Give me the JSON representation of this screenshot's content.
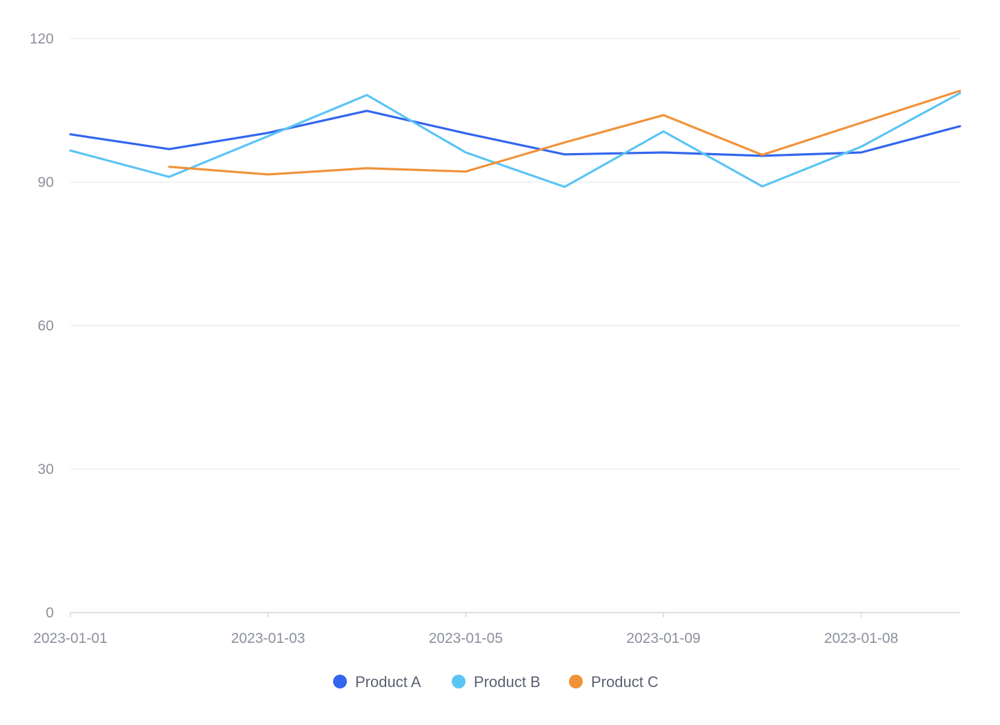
{
  "chart_data": {
    "type": "line",
    "title": "",
    "xlabel": "",
    "ylabel": "",
    "x_categories": [
      "2023-01-01",
      "",
      "2023-01-03",
      "",
      "2023-01-05",
      "",
      "2023-01-09",
      "",
      "2023-01-08",
      ""
    ],
    "x_tick_labels": [
      "2023-01-01",
      "2023-01-03",
      "2023-01-05",
      "2023-01-09",
      "2023-01-08"
    ],
    "x_tick_label_indices": [
      0,
      2,
      4,
      6,
      8
    ],
    "ylim": [
      0,
      120
    ],
    "y_ticks": [
      0,
      30,
      60,
      90,
      120
    ],
    "grid": true,
    "legend_position": "bottom-center",
    "series": [
      {
        "name": "Product A",
        "color": "#3366ee",
        "values": [
          100,
          96.9,
          100.3,
          104.9,
          100.2,
          95.8,
          96.2,
          95.5,
          96.2,
          101.7
        ]
      },
      {
        "name": "Product B",
        "color": "#5bc4f5",
        "values": [
          96.6,
          91.1,
          99.6,
          108.2,
          96.2,
          89.0,
          100.6,
          89.1,
          97.4,
          108.6
        ]
      },
      {
        "name": "Product C",
        "color": "#f0923a",
        "values": [
          null,
          93.2,
          91.6,
          92.9,
          92.2,
          98.3,
          104.0,
          95.7,
          102.4,
          109.1
        ]
      }
    ]
  }
}
